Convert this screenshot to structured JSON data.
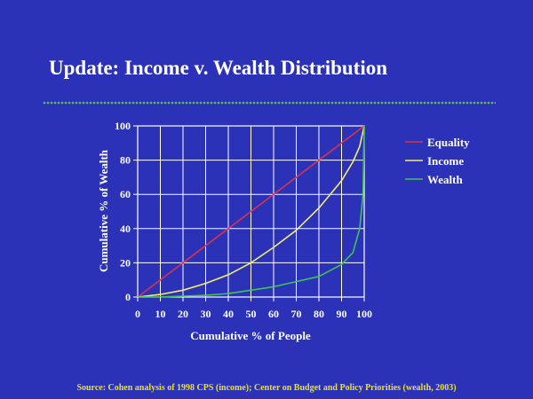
{
  "slide": {
    "title": "Update: Income v. Wealth Distribution",
    "source": "Source: Cohen analysis of 1998 CPS (income); Center on Budget and Policy Priorities (wealth, 2003)",
    "background_color": "#2b32b8",
    "divider_color": "#5ec24a"
  },
  "chart_data": {
    "type": "line",
    "title": "",
    "xlabel": "Cumulative % of People",
    "ylabel": "Cumulative % of Wealth",
    "xlim": [
      0,
      100
    ],
    "ylim": [
      0,
      100
    ],
    "xticks": [
      0,
      10,
      20,
      30,
      40,
      50,
      60,
      70,
      80,
      90,
      100
    ],
    "yticks": [
      0,
      20,
      40,
      60,
      80,
      100
    ],
    "grid": true,
    "legend_position": "right",
    "series": [
      {
        "name": "Equality",
        "color": "#d8334a",
        "x": [
          0,
          100
        ],
        "y": [
          0,
          100
        ]
      },
      {
        "name": "Income",
        "color": "#f4ee6a",
        "x": [
          0,
          10,
          20,
          30,
          40,
          50,
          60,
          70,
          80,
          90,
          95,
          98,
          100
        ],
        "y": [
          0,
          1.5,
          4,
          8,
          13,
          20,
          29,
          39,
          52,
          68,
          79,
          88,
          100
        ]
      },
      {
        "name": "Wealth",
        "color": "#3fc456",
        "x": [
          0,
          10,
          20,
          30,
          40,
          50,
          60,
          70,
          80,
          90,
          95,
          98,
          99.5,
          100
        ],
        "y": [
          0,
          0,
          0.5,
          1,
          2,
          4,
          6,
          9,
          12,
          19,
          26,
          40,
          60,
          100
        ]
      }
    ]
  }
}
